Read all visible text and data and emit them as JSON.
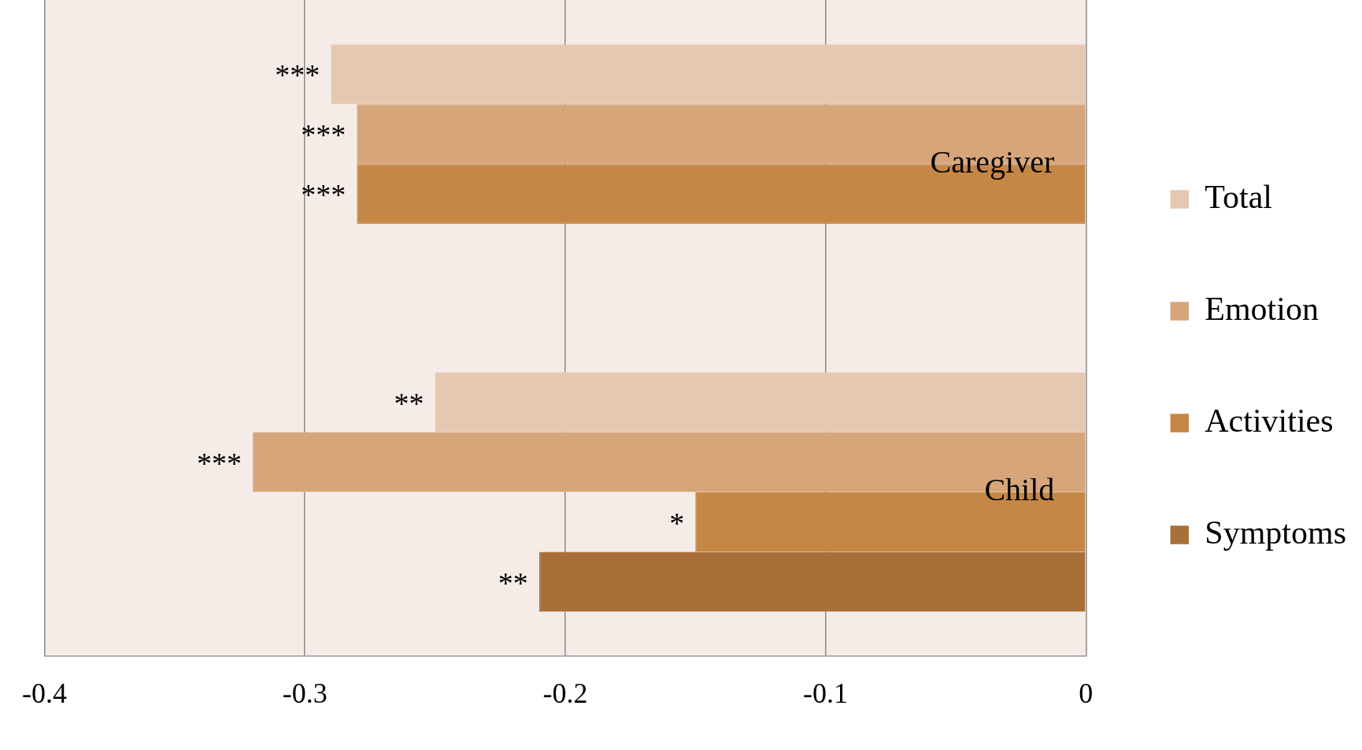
{
  "chart_data": {
    "type": "bar",
    "orientation": "horizontal",
    "categories": [
      "Caregiver",
      "Child"
    ],
    "series": [
      {
        "name": "Total",
        "color": "#e5c8b2",
        "values": [
          -0.29,
          -0.25
        ],
        "value_labels": [
          "***",
          "**"
        ]
      },
      {
        "name": "Emotion",
        "color": "#d6a57a",
        "values": [
          -0.28,
          -0.32
        ],
        "value_labels": [
          "***",
          "***"
        ]
      },
      {
        "name": "Activities",
        "color": "#c48745",
        "values": [
          -0.28,
          -0.15
        ],
        "value_labels": [
          "***",
          "*"
        ]
      },
      {
        "name": "Symptoms",
        "color": "#a87038",
        "values": [
          null,
          -0.21
        ],
        "value_labels": [
          null,
          "**"
        ]
      }
    ],
    "xlim": [
      -0.4,
      0
    ],
    "xticks": [
      -0.4,
      -0.3,
      -0.2,
      -0.1,
      0
    ],
    "grid": "x",
    "legend": "right"
  }
}
